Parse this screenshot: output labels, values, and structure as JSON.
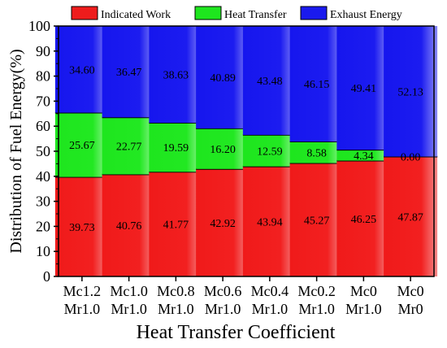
{
  "chart_data": {
    "type": "bar",
    "stacked": true,
    "xlabel": "Heat Transfer Coefficient",
    "ylabel": "Distribution of Fuel Energy(%)",
    "ylim": [
      0,
      100
    ],
    "yticks": [
      0,
      10,
      20,
      30,
      40,
      50,
      60,
      70,
      80,
      90,
      100
    ],
    "grid": false,
    "legend_position": "top",
    "categories": [
      [
        "Mc1.2",
        "Mr1.0"
      ],
      [
        "Mc1.0",
        "Mr1.0"
      ],
      [
        "Mc0.8",
        "Mr1.0"
      ],
      [
        "Mc0.6",
        "Mr1.0"
      ],
      [
        "Mc0.4",
        "Mr1.0"
      ],
      [
        "Mc0.2",
        "Mr1.0"
      ],
      [
        "Mc0",
        "Mr1.0"
      ],
      [
        "Mc0",
        "Mr0"
      ]
    ],
    "series": [
      {
        "name": "Indicated Work",
        "color": "#ee1c1c",
        "values": [
          39.73,
          40.76,
          41.77,
          42.92,
          43.94,
          45.27,
          46.25,
          47.87
        ],
        "labels": [
          "39.73",
          "40.76",
          "41.77",
          "42.92",
          "43.94",
          "45.27",
          "46.25",
          "47.87"
        ]
      },
      {
        "name": "Heat Transfer",
        "color": "#1ee61e",
        "values": [
          25.67,
          22.77,
          19.59,
          16.2,
          12.59,
          8.58,
          4.34,
          0.0
        ],
        "labels": [
          "25.67",
          "22.77",
          "19.59",
          "16.20",
          "12.59",
          "8.58",
          "4.34",
          "0.00"
        ]
      },
      {
        "name": "Exhaust Energy",
        "color": "#1a1aee",
        "values": [
          34.6,
          36.47,
          38.63,
          40.89,
          43.48,
          46.15,
          49.41,
          52.13
        ],
        "labels": [
          "34.60",
          "36.47",
          "38.63",
          "40.89",
          "43.48",
          "46.15",
          "49.41",
          "52.13"
        ]
      }
    ]
  }
}
